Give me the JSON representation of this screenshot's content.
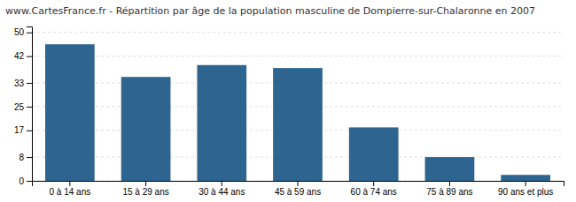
{
  "chart_data": {
    "type": "bar",
    "title": "www.CartesFrance.fr - Répartition par âge de la population masculine de Dompierre-sur-Chalaronne en 2007",
    "categories": [
      "0 à 14 ans",
      "15 à 29 ans",
      "30 à 44 ans",
      "45 à 59 ans",
      "60 à 74 ans",
      "75 à 89 ans",
      "90 ans et plus"
    ],
    "values": [
      46,
      35,
      39,
      38,
      18,
      8,
      2
    ],
    "color": "#2e6590",
    "ylim": [
      0,
      52
    ],
    "yticks": [
      0,
      8,
      17,
      25,
      33,
      42,
      50
    ],
    "grid": true
  }
}
